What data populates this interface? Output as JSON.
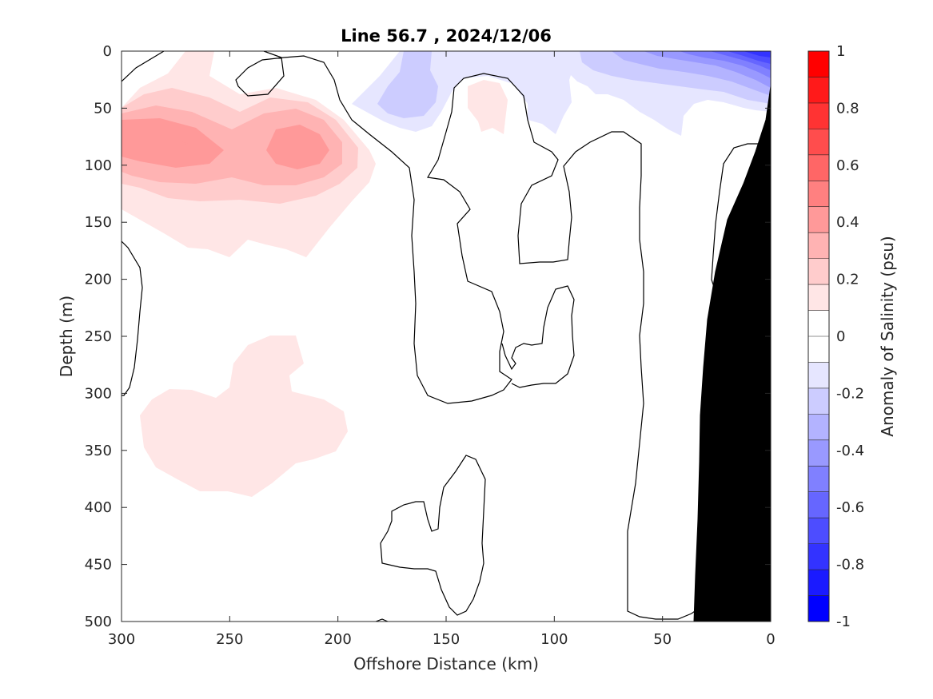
{
  "chart_data": {
    "type": "heatmap",
    "subtype": "filled-contour-section",
    "title": "Line 56.7 , 2024/12/06",
    "xlabel": "Offshore Distance (km)",
    "ylabel": "Depth (m)",
    "xlim": [
      300,
      0
    ],
    "x_reversed": true,
    "ylim": [
      0,
      500
    ],
    "y_reversed": true,
    "xticks": [
      300,
      250,
      200,
      150,
      100,
      50,
      0
    ],
    "yticks": [
      0,
      50,
      100,
      150,
      200,
      250,
      300,
      350,
      400,
      450,
      500
    ],
    "colorbar": {
      "label": "Anomaly of Salinity (psu)",
      "range": [
        -1,
        1
      ],
      "ticks": [
        1,
        0.8,
        0.6,
        0.4,
        0.2,
        0,
        -0.2,
        -0.4,
        -0.6,
        -0.8,
        -1
      ],
      "levels": [
        -1,
        -0.9,
        -0.8,
        -0.7,
        -0.6,
        -0.5,
        -0.4,
        -0.3,
        -0.2,
        -0.1,
        0,
        0.1,
        0.2,
        0.3,
        0.4,
        0.5,
        0.6,
        0.7,
        0.8,
        0.9,
        1
      ],
      "colors": [
        "#0000ff",
        "#1a1aff",
        "#3333ff",
        "#4d4dff",
        "#6666ff",
        "#8080ff",
        "#9999ff",
        "#b3b3ff",
        "#ccccff",
        "#e6e6ff",
        "#ffffff",
        "#ffffff",
        "#ffe6e6",
        "#ffcccc",
        "#ffb3b3",
        "#ff9999",
        "#ff8080",
        "#ff6666",
        "#ff4d4d",
        "#ff3333",
        "#ff1a1a",
        "#ff0000"
      ],
      "placement": "right"
    },
    "features": [
      {
        "name": "positive anomaly core",
        "x_range": [
          300,
          180
        ],
        "depth_range": [
          0,
          180
        ],
        "peak": 0.5,
        "peak_depth": 80
      },
      {
        "name": "deep positive anomaly",
        "x_range": [
          290,
          195
        ],
        "depth_range": [
          250,
          390
        ],
        "peak": 0.2
      },
      {
        "name": "negative anomaly nearshore surface",
        "x_range": [
          90,
          0
        ],
        "depth_range": [
          0,
          70
        ],
        "peak": -0.8,
        "peak_location": [
          10,
          0
        ]
      },
      {
        "name": "negative anomaly offshore surface",
        "x_range": [
          190,
          120
        ],
        "depth_range": [
          0,
          60
        ],
        "peak": -0.3
      }
    ],
    "bathymetry": {
      "color": "#000000",
      "description": "continental slope masked in black"
    },
    "grid": false
  }
}
